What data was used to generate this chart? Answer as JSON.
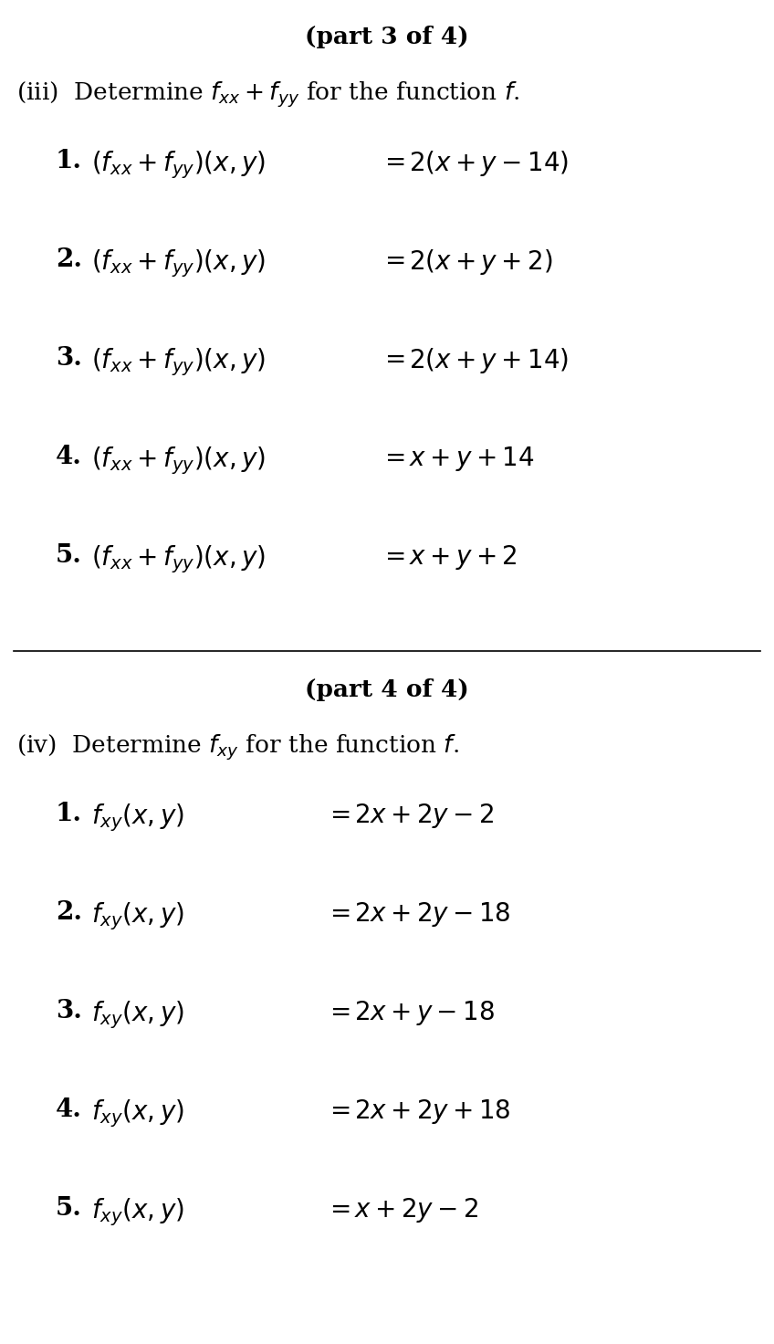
{
  "bg_color": "#ffffff",
  "part3_title": "(part 3 of 4)",
  "part3_subtitle_pre": "(iii)  Determine ",
  "part3_subtitle_math": "$f_{xx} + f_{yy}$",
  "part3_subtitle_post": " for the function ",
  "part3_subtitle_f": "$f$",
  "part3_subtitle_dot": ".",
  "part3_items": [
    {
      "num": "1.",
      "lhs": "$(f_{xx} + f_{yy})(x, y)$",
      "rhs": "$2(x + y - 14)$"
    },
    {
      "num": "2.",
      "lhs": "$(f_{xx} + f_{yy})(x, y)$",
      "rhs": "$2(x + y + 2)$"
    },
    {
      "num": "3.",
      "lhs": "$(f_{xx} + f_{yy})(x, y)$",
      "rhs": "$2(x + y + 14)$"
    },
    {
      "num": "4.",
      "lhs": "$(f_{xx} + f_{yy})(x, y)$",
      "rhs": "$x + y + 14$"
    },
    {
      "num": "5.",
      "lhs": "$(f_{xx} + f_{yy})(x, y)$",
      "rhs": "$x + y + 2$"
    }
  ],
  "part4_title": "(part 4 of 4)",
  "part4_subtitle_pre": "(iv)  Determine ",
  "part4_subtitle_math": "$f_{xy}$",
  "part4_subtitle_post": " for the function ",
  "part4_subtitle_f": "$f$",
  "part4_subtitle_dot": ".",
  "part4_items": [
    {
      "num": "1.",
      "lhs": "$f_{xy}(x, y)$",
      "rhs": "$2x + 2y - 2$"
    },
    {
      "num": "2.",
      "lhs": "$f_{xy}(x, y)$",
      "rhs": "$2x + 2y - 18$"
    },
    {
      "num": "3.",
      "lhs": "$f_{xy}(x, y)$",
      "rhs": "$2x + y - 18$"
    },
    {
      "num": "4.",
      "lhs": "$f_{xy}(x, y)$",
      "rhs": "$2x + 2y + 18$"
    },
    {
      "num": "5.",
      "lhs": "$f_{xy}(x, y)$",
      "rhs": "$x + 2y - 2$"
    }
  ],
  "title_fontsize": 19,
  "subtitle_fontsize": 19,
  "item_fontsize": 20,
  "num_fontsize": 20
}
